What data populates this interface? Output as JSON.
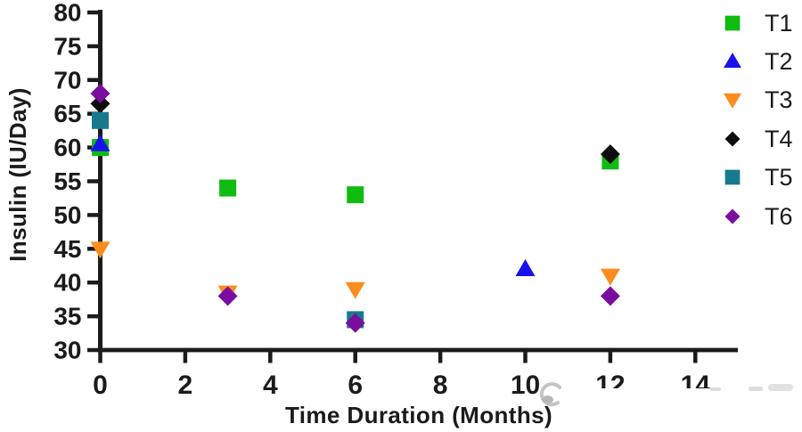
{
  "figure": {
    "background": "#ffffff",
    "axis_color": "#1b1b1b",
    "text_color": "#1b1b1b"
  },
  "chart_data": {
    "type": "scatter",
    "title": "",
    "xlabel": "Time Duration (Months)",
    "ylabel": "Insulin (IU/Day)",
    "xlim": [
      0,
      15
    ],
    "ylim": [
      30,
      80
    ],
    "xticks": [
      0,
      2,
      4,
      6,
      8,
      10,
      12,
      14
    ],
    "yticks": [
      30,
      35,
      40,
      45,
      50,
      55,
      60,
      65,
      70,
      75,
      80
    ],
    "grid": false,
    "legend_position": "right",
    "series": [
      {
        "name": "T1",
        "marker": "square",
        "color": "#0fbc0f",
        "points": [
          [
            0,
            60
          ],
          [
            3,
            54
          ],
          [
            6,
            53
          ],
          [
            12,
            58
          ]
        ]
      },
      {
        "name": "T2",
        "marker": "triangle-up",
        "color": "#1712ec",
        "points": [
          [
            0,
            60.5
          ],
          [
            10,
            42
          ]
        ]
      },
      {
        "name": "T3",
        "marker": "triangle-down",
        "color": "#fb8c1e",
        "points": [
          [
            0,
            45
          ],
          [
            3,
            38.5
          ],
          [
            6,
            39
          ],
          [
            12,
            41
          ]
        ]
      },
      {
        "name": "T4",
        "marker": "diamond",
        "color": "#0d0d0d",
        "points": [
          [
            0,
            66.5
          ],
          [
            12,
            59
          ]
        ]
      },
      {
        "name": "T5",
        "marker": "square",
        "color": "#18798c",
        "points": [
          [
            0,
            64
          ],
          [
            6,
            34.5
          ]
        ]
      },
      {
        "name": "T6",
        "marker": "diamond",
        "color": "#7a0d9e",
        "points": [
          [
            0,
            68
          ],
          [
            3,
            38
          ],
          [
            6,
            34
          ],
          [
            12,
            38
          ]
        ]
      }
    ]
  }
}
